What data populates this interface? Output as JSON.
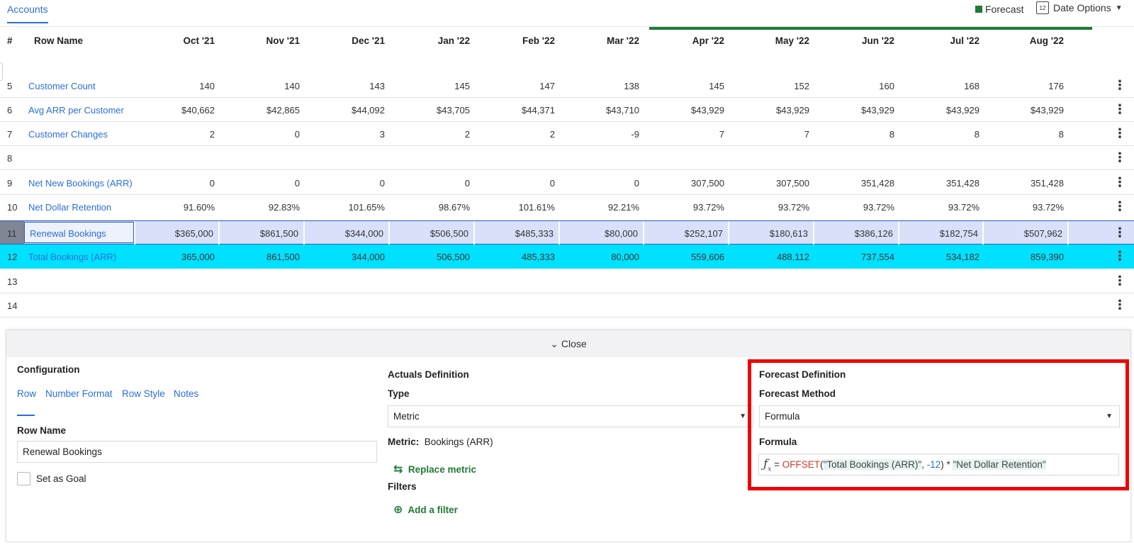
{
  "top": {
    "tab": "Accounts",
    "legend_label": "Forecast",
    "legend_color": "#1e7b34",
    "date_options_label": "Date Options",
    "calendar_day": "12"
  },
  "table": {
    "headers": {
      "num": "#",
      "name": "Row Name"
    },
    "months": [
      "Oct '21",
      "Nov '21",
      "Dec '21",
      "Jan '22",
      "Feb '22",
      "Mar '22",
      "Apr '22",
      "May '22",
      "Jun '22",
      "Jul '22",
      "Aug '22"
    ],
    "rows": [
      {
        "num": "5",
        "name": "Customer Count",
        "values": [
          "140",
          "140",
          "143",
          "145",
          "147",
          "138",
          "145",
          "152",
          "160",
          "168",
          "176"
        ]
      },
      {
        "num": "6",
        "name": "Avg ARR per Customer",
        "values": [
          "$40,662",
          "$42,865",
          "$44,092",
          "$43,705",
          "$44,371",
          "$43,710",
          "$43,929",
          "$43,929",
          "$43,929",
          "$43,929",
          "$43,929"
        ]
      },
      {
        "num": "7",
        "name": "Customer Changes",
        "values": [
          "2",
          "0",
          "3",
          "2",
          "2",
          "-9",
          "7",
          "7",
          "8",
          "8",
          "8"
        ]
      },
      {
        "num": "8",
        "name": "",
        "values": [
          "",
          "",
          "",
          "",
          "",
          "",
          "",
          "",
          "",
          "",
          ""
        ]
      },
      {
        "num": "9",
        "name": "Net New Bookings (ARR)",
        "values": [
          "0",
          "0",
          "0",
          "0",
          "0",
          "0",
          "307,500",
          "307,500",
          "351,428",
          "351,428",
          "351,428"
        ]
      },
      {
        "num": "10",
        "name": "Net Dollar Retention",
        "values": [
          "91.60%",
          "92.83%",
          "101.65%",
          "98.67%",
          "101.61%",
          "92.21%",
          "93.72%",
          "93.72%",
          "93.72%",
          "93.72%",
          "93.72%"
        ]
      },
      {
        "num": "11",
        "name": "Renewal Bookings",
        "values": [
          "$365,000",
          "$861,500",
          "$344,000",
          "$506,500",
          "$485,333",
          "$80,000",
          "$252,107",
          "$180,613",
          "$386,126",
          "$182,754",
          "$507,962"
        ]
      },
      {
        "num": "12",
        "name": "Total Bookings (ARR)",
        "values": [
          "365,000",
          "861,500",
          "344,000",
          "506,500",
          "485,333",
          "80,000",
          "559,606",
          "488,112",
          "737,554",
          "534,182",
          "859,390"
        ]
      },
      {
        "num": "13",
        "name": "",
        "values": [
          "",
          "",
          "",
          "",
          "",
          "",
          "",
          "",
          "",
          "",
          ""
        ]
      },
      {
        "num": "14",
        "name": "",
        "values": [
          "",
          "",
          "",
          "",
          "",
          "",
          "",
          "",
          "",
          "",
          ""
        ]
      }
    ]
  },
  "panel": {
    "close_label": "Close",
    "config": {
      "title": "Configuration",
      "tabs": [
        "Row",
        "Number Format",
        "Row Style",
        "Notes"
      ],
      "row_name_label": "Row Name",
      "row_name_value": "Renewal Bookings",
      "goal_label": "Set as Goal"
    },
    "actuals": {
      "title": "Actuals Definition",
      "type_label": "Type",
      "type_value": "Metric",
      "metric_label": "Metric:",
      "metric_value": "Bookings (ARR)",
      "replace_label": "Replace metric",
      "filters_label": "Filters",
      "add_filter_label": "Add a filter"
    },
    "forecast": {
      "title": "Forecast Definition",
      "method_label": "Forecast Method",
      "method_value": "Formula",
      "formula_label": "Formula",
      "fx_symbol": "ƒ",
      "fx_sub": "x",
      "eq": "=",
      "fn": "OFFSET",
      "open_paren": "(",
      "arg1": "\"Total Bookings (ARR)\"",
      "comma": ", ",
      "arg2": "-12",
      "close_mul": ") * ",
      "arg3": "\"Net Dollar Retention\""
    }
  }
}
